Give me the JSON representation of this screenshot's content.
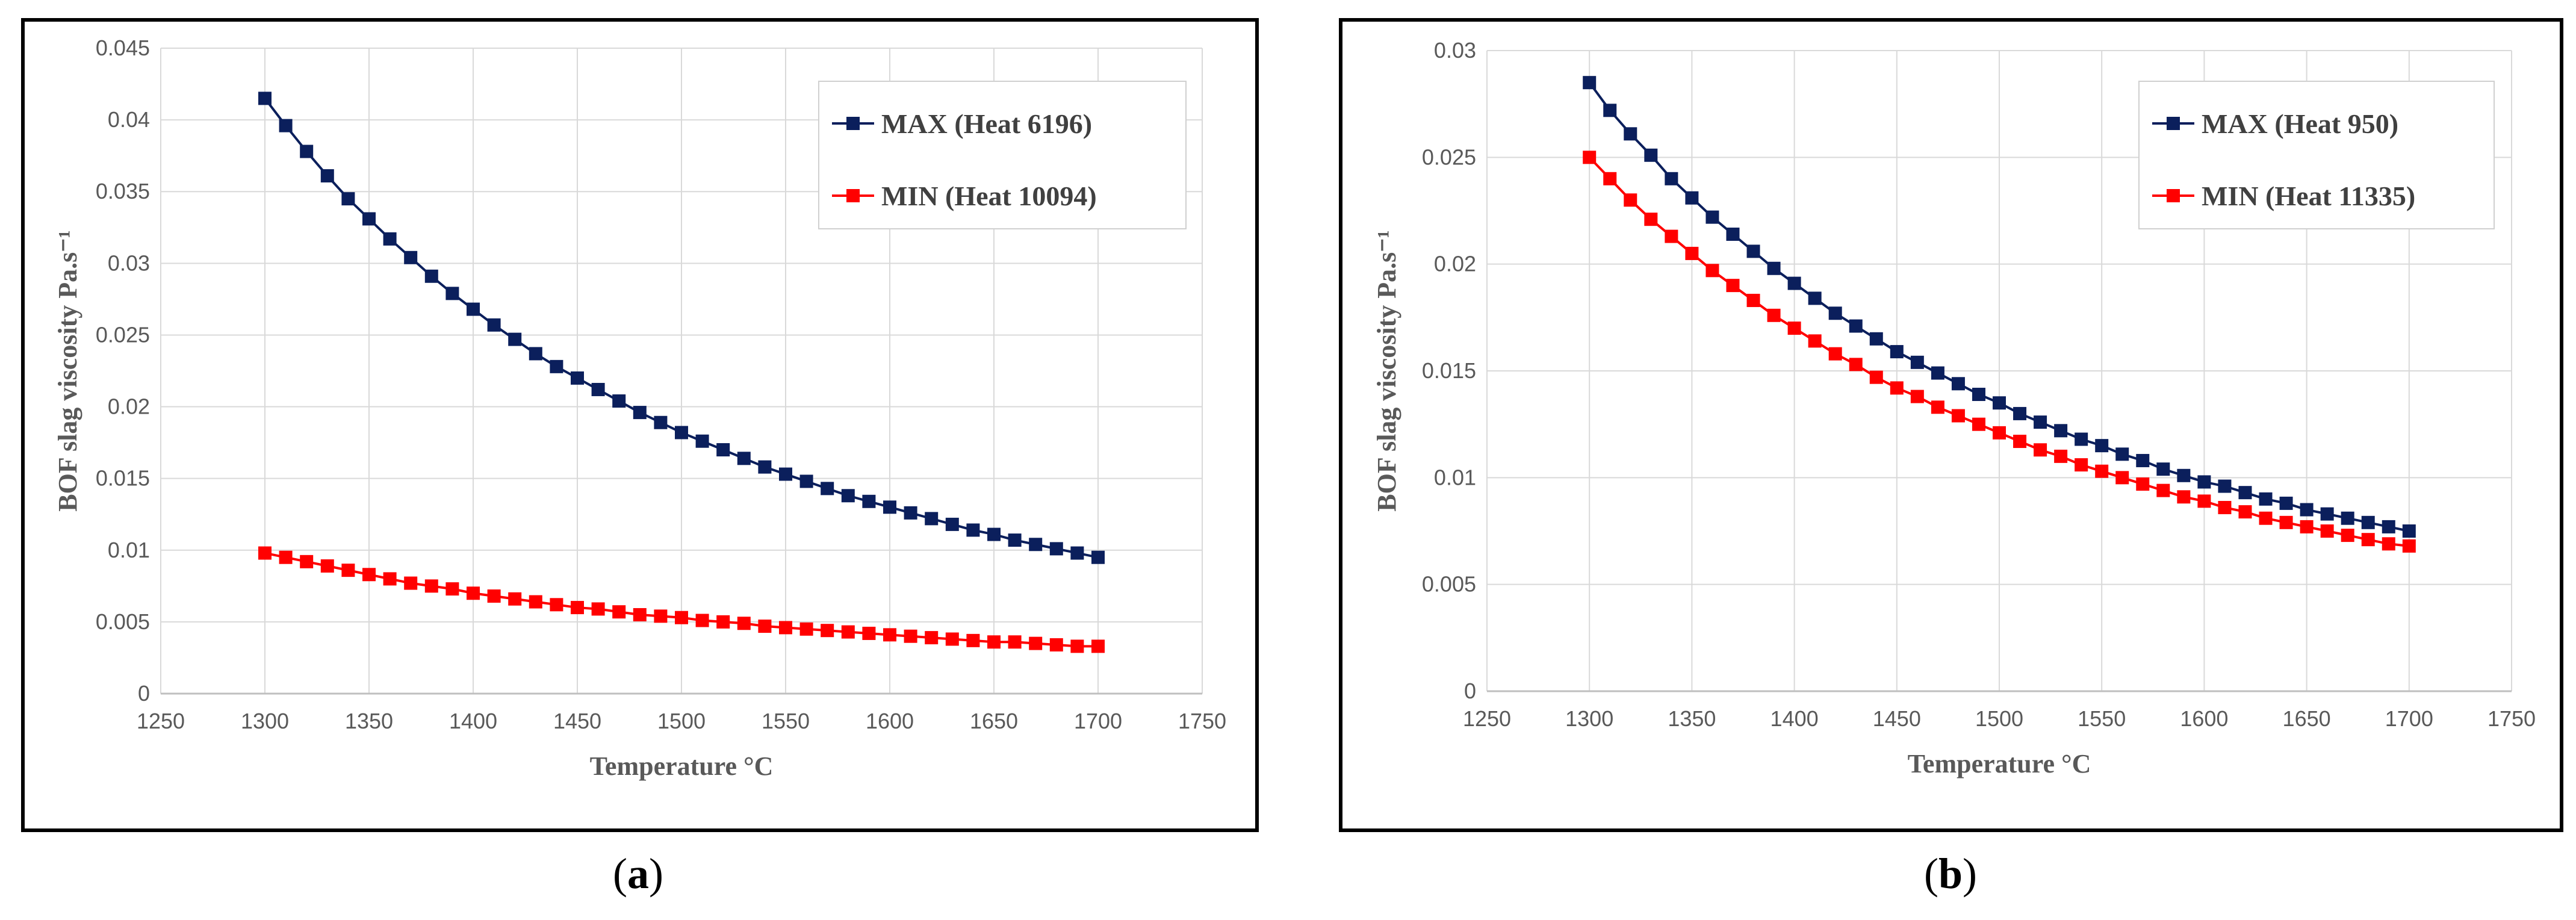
{
  "figure": {
    "captions": [
      {
        "open": "(",
        "letter": "a",
        "close": ")"
      },
      {
        "open": "(",
        "letter": "b",
        "close": ")"
      }
    ]
  },
  "chart_data": [
    {
      "type": "line",
      "panel": "a",
      "title": "",
      "xlabel": "Temperature °C",
      "ylabel": "BOF slag viscosity Pa.s⁻¹",
      "xlim": [
        1250,
        1750
      ],
      "ylim": [
        0,
        0.045
      ],
      "xticks": [
        1250,
        1300,
        1350,
        1400,
        1450,
        1500,
        1550,
        1600,
        1650,
        1700,
        1750
      ],
      "yticks": [
        "0",
        "0.005",
        "0.01",
        "0.015",
        "0.02",
        "0.025",
        "0.03",
        "0.035",
        "0.04",
        "0.045"
      ],
      "grid": true,
      "legend_position": "top-right",
      "x": [
        1300,
        1310,
        1320,
        1330,
        1340,
        1350,
        1360,
        1370,
        1380,
        1390,
        1400,
        1410,
        1420,
        1430,
        1440,
        1450,
        1460,
        1470,
        1480,
        1490,
        1500,
        1510,
        1520,
        1530,
        1540,
        1550,
        1560,
        1570,
        1580,
        1590,
        1600,
        1610,
        1620,
        1630,
        1640,
        1650,
        1660,
        1670,
        1680,
        1690,
        1700
      ],
      "series": [
        {
          "name": "MAX (Heat 6196)",
          "color": "#0b1f5c",
          "values": [
            0.0415,
            0.0396,
            0.0378,
            0.0361,
            0.0345,
            0.0331,
            0.0317,
            0.0304,
            0.0291,
            0.0279,
            0.0268,
            0.0257,
            0.0247,
            0.0237,
            0.0228,
            0.022,
            0.0212,
            0.0204,
            0.0196,
            0.0189,
            0.0182,
            0.0176,
            0.017,
            0.0164,
            0.0158,
            0.0153,
            0.0148,
            0.0143,
            0.0138,
            0.0134,
            0.013,
            0.0126,
            0.0122,
            0.0118,
            0.0114,
            0.0111,
            0.0107,
            0.0104,
            0.0101,
            0.0098,
            0.0095
          ]
        },
        {
          "name": "MIN (Heat 10094)",
          "color": "#ff0000",
          "values": [
            0.0098,
            0.0095,
            0.0092,
            0.0089,
            0.0086,
            0.0083,
            0.008,
            0.0077,
            0.0075,
            0.0073,
            0.007,
            0.0068,
            0.0066,
            0.0064,
            0.0062,
            0.006,
            0.0059,
            0.0057,
            0.0055,
            0.0054,
            0.0053,
            0.0051,
            0.005,
            0.0049,
            0.0047,
            0.0046,
            0.0045,
            0.0044,
            0.0043,
            0.0042,
            0.0041,
            0.004,
            0.0039,
            0.0038,
            0.0037,
            0.0036,
            0.0036,
            0.0035,
            0.0034,
            0.0033,
            0.0033
          ]
        }
      ]
    },
    {
      "type": "line",
      "panel": "b",
      "title": "",
      "xlabel": "Temperature °C",
      "ylabel": "BOF slag viscosity Pa.s⁻¹",
      "xlim": [
        1250,
        1750
      ],
      "ylim": [
        0,
        0.03
      ],
      "xticks": [
        1250,
        1300,
        1350,
        1400,
        1450,
        1500,
        1550,
        1600,
        1650,
        1700,
        1750
      ],
      "yticks": [
        "0",
        "0.005",
        "0.01",
        "0.015",
        "0.02",
        "0.025",
        "0.03"
      ],
      "grid": true,
      "legend_position": "top-right",
      "x": [
        1300,
        1310,
        1320,
        1330,
        1340,
        1350,
        1360,
        1370,
        1380,
        1390,
        1400,
        1410,
        1420,
        1430,
        1440,
        1450,
        1460,
        1470,
        1480,
        1490,
        1500,
        1510,
        1520,
        1530,
        1540,
        1550,
        1560,
        1570,
        1580,
        1590,
        1600,
        1610,
        1620,
        1630,
        1640,
        1650,
        1660,
        1670,
        1680,
        1690,
        1700
      ],
      "series": [
        {
          "name": "MAX (Heat 950)",
          "color": "#0b1f5c",
          "values": [
            0.0285,
            0.0272,
            0.0261,
            0.0251,
            0.024,
            0.0231,
            0.0222,
            0.0214,
            0.0206,
            0.0198,
            0.0191,
            0.0184,
            0.0177,
            0.0171,
            0.0165,
            0.0159,
            0.0154,
            0.0149,
            0.0144,
            0.0139,
            0.0135,
            0.013,
            0.0126,
            0.0122,
            0.0118,
            0.0115,
            0.0111,
            0.0108,
            0.0104,
            0.0101,
            0.0098,
            0.0096,
            0.0093,
            0.009,
            0.0088,
            0.0085,
            0.0083,
            0.0081,
            0.0079,
            0.0077,
            0.0075
          ]
        },
        {
          "name": "MIN (Heat 11335)",
          "color": "#ff0000",
          "values": [
            0.025,
            0.024,
            0.023,
            0.0221,
            0.0213,
            0.0205,
            0.0197,
            0.019,
            0.0183,
            0.0176,
            0.017,
            0.0164,
            0.0158,
            0.0153,
            0.0147,
            0.0142,
            0.0138,
            0.0133,
            0.0129,
            0.0125,
            0.0121,
            0.0117,
            0.0113,
            0.011,
            0.0106,
            0.0103,
            0.01,
            0.0097,
            0.0094,
            0.0091,
            0.0089,
            0.0086,
            0.0084,
            0.0081,
            0.0079,
            0.0077,
            0.0075,
            0.0073,
            0.0071,
            0.0069,
            0.0068
          ]
        }
      ]
    }
  ]
}
